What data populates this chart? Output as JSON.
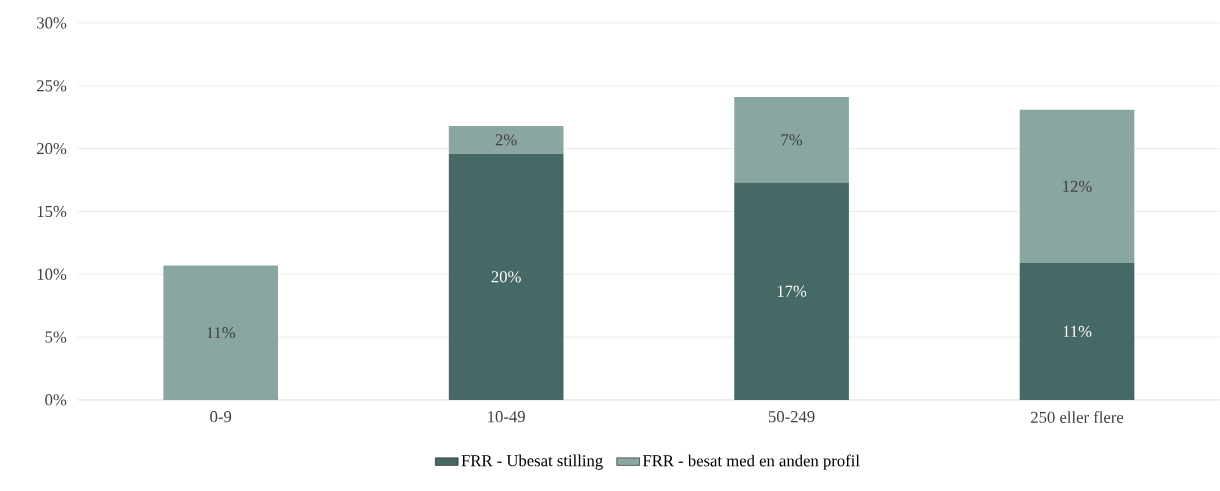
{
  "chart_data": {
    "type": "bar",
    "stacked": true,
    "categories": [
      "0-9",
      "10-49",
      "50-249",
      "250 eller flere"
    ],
    "series": [
      {
        "name": "FRR - Ubesat stilling",
        "color": "#466966",
        "values": [
          0,
          19.6,
          17.3,
          10.9
        ],
        "value_labels": [
          null,
          "20%",
          "17%",
          "11%"
        ]
      },
      {
        "name": "FRR - besat med en anden profil",
        "color": "#8aa6a3",
        "values": [
          10.7,
          2.2,
          6.8,
          12.2
        ],
        "value_labels": [
          "11%",
          "2%",
          "7%",
          "12%"
        ]
      }
    ],
    "ylim": [
      0,
      30
    ],
    "yticks": [
      {
        "value": 0,
        "label": "0%"
      },
      {
        "value": 5,
        "label": "5%"
      },
      {
        "value": 10,
        "label": "10%"
      },
      {
        "value": 15,
        "label": "15%"
      },
      {
        "value": 20,
        "label": "20%"
      },
      {
        "value": 25,
        "label": "25%"
      },
      {
        "value": 30,
        "label": "30%"
      }
    ],
    "grid": "y",
    "legend": "bottom"
  }
}
